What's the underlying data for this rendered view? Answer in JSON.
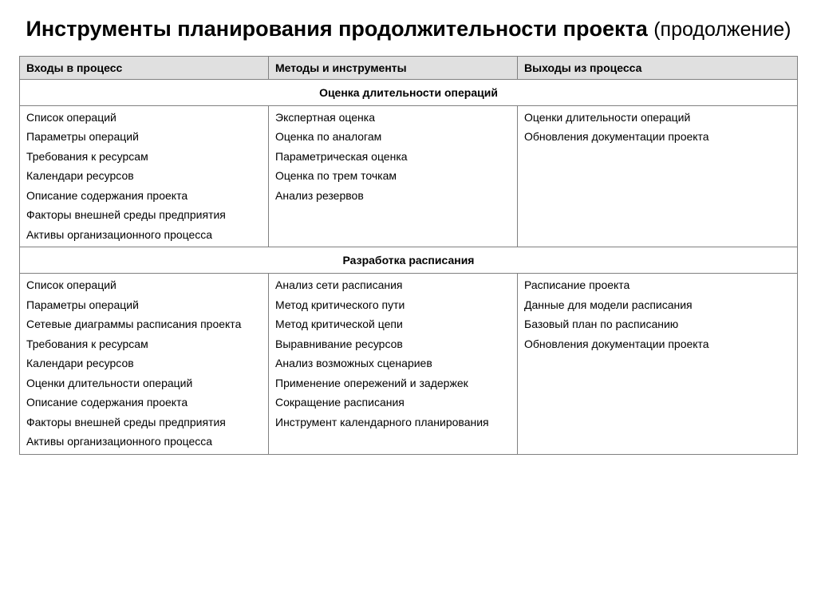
{
  "title_main": "Инструменты планирования продолжительности проекта",
  "title_sub": "(продолжение)",
  "headers": {
    "col1": "Входы в процесс",
    "col2": "Методы и инструменты",
    "col3": "Выходы из процесса"
  },
  "sections": [
    {
      "title": "Оценка длительности операций",
      "inputs": [
        "Список операций",
        "Параметры операций",
        "Требования к ресурсам",
        "Календари ресурсов",
        "Описание содержания проекта",
        "Факторы внешней среды предприятия",
        "Активы организационного процесса"
      ],
      "tools": [
        "Экспертная оценка",
        "Оценка по аналогам",
        "Параметрическая оценка",
        "Оценка по трем точкам",
        "Анализ резервов"
      ],
      "outputs": [
        "Оценки длительности операций",
        "Обновления документации проекта"
      ]
    },
    {
      "title": "Разработка расписания",
      "inputs": [
        "Список операций",
        "Параметры операций",
        "Сетевые диаграммы расписания проекта",
        "Требования к ресурсам",
        "Календари ресурсов",
        "Оценки длительности операций",
        "Описание содержания проекта",
        "Факторы внешней среды предприятия",
        "Активы организационного процесса"
      ],
      "tools": [
        "Анализ сети расписания",
        "Метод критического пути",
        "Метод критической цепи",
        "Выравнивание ресурсов",
        "Анализ возможных сценариев",
        "Применение опережений и задержек",
        "Сокращение расписания",
        "Инструмент календарного планирования"
      ],
      "outputs": [
        "Расписание проекта",
        "Данные для модели расписания",
        "Базовый план по расписанию",
        "Обновления документации проекта"
      ]
    }
  ]
}
